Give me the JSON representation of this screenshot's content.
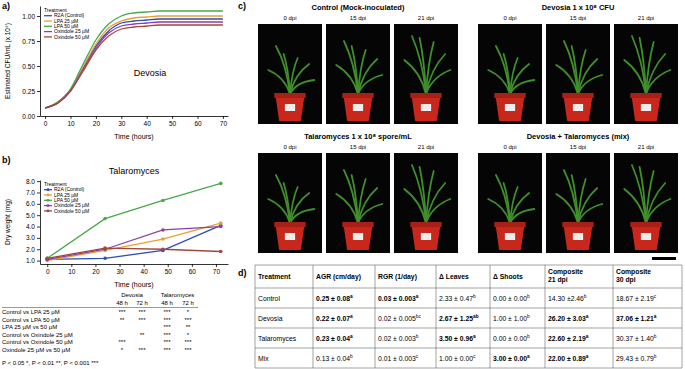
{
  "panel_labels": [
    "a)",
    "b)",
    "c)",
    "d)"
  ],
  "chart_data": [
    {
      "type": "line",
      "title": "Devosia",
      "xlabel": "Time (hours)",
      "ylabel": "Estimated CFU/mL (x 10⁹)",
      "legend_title": "Treatment",
      "legend": "upper left",
      "grid": false,
      "line_style": "smooth",
      "x": [
        0,
        5,
        10,
        15,
        20,
        25,
        30,
        35,
        40,
        45,
        50,
        55,
        60,
        65,
        70
      ],
      "series": [
        {
          "name": "R2A (Control)",
          "color": "#2f4bb8",
          "values": [
            0.08,
            0.13,
            0.26,
            0.48,
            0.7,
            0.85,
            0.93,
            0.95,
            0.96,
            0.97,
            0.97,
            0.97,
            0.97,
            0.97,
            0.97
          ]
        },
        {
          "name": "LPA 25 µM",
          "color": "#e8a030",
          "values": [
            0.08,
            0.14,
            0.26,
            0.49,
            0.72,
            0.88,
            0.95,
            0.98,
            0.99,
            1.0,
            1.0,
            1.0,
            1.0,
            1.0,
            1.0
          ]
        },
        {
          "name": "LPA 50 µM",
          "color": "#4aa84a",
          "values": [
            0.08,
            0.14,
            0.27,
            0.52,
            0.76,
            0.92,
            1.0,
            1.03,
            1.04,
            1.05,
            1.05,
            1.05,
            1.05,
            1.05,
            1.05
          ]
        },
        {
          "name": "Oxindole 25 µM",
          "color": "#8a3fa8",
          "values": [
            0.08,
            0.13,
            0.25,
            0.47,
            0.68,
            0.83,
            0.9,
            0.92,
            0.93,
            0.94,
            0.94,
            0.94,
            0.94,
            0.94,
            0.94
          ]
        },
        {
          "name": "Oxindole 50 µM",
          "color": "#a3473a",
          "values": [
            0.08,
            0.13,
            0.25,
            0.45,
            0.66,
            0.8,
            0.87,
            0.89,
            0.9,
            0.91,
            0.91,
            0.91,
            0.91,
            0.91,
            0.91
          ]
        }
      ],
      "xlim": [
        -2,
        72
      ],
      "xticks": [
        0,
        10,
        20,
        30,
        40,
        50,
        60,
        70
      ],
      "ylim": [
        0,
        1.1
      ],
      "yticks": [
        {
          "value": 0,
          "label": "0.00"
        },
        {
          "value": 0.25,
          "label": "0.25"
        },
        {
          "value": 0.5,
          "label": "0.50"
        },
        {
          "value": 0.75,
          "label": "0.75"
        },
        {
          "value": 1,
          "label": "1.00"
        }
      ]
    },
    {
      "type": "line",
      "title": "Talaromyces",
      "xlabel": "Time (hours)",
      "ylabel": "Dry weight (mg)",
      "legend_title": "Treatment",
      "legend": "upper left",
      "grid": false,
      "line_style": "solid",
      "marker": "circle",
      "x": [
        0,
        24,
        48,
        72
      ],
      "series": [
        {
          "name": "R2A (Control)",
          "color": "#2f4bb8",
          "values": [
            1.1,
            1.2,
            1.9,
            4.1
          ]
        },
        {
          "name": "LPA 25 µM",
          "color": "#e8a030",
          "values": [
            1.0,
            1.9,
            2.9,
            4.3
          ]
        },
        {
          "name": "LPA 50 µM",
          "color": "#4aa84a",
          "values": [
            1.2,
            4.7,
            6.3,
            7.8
          ]
        },
        {
          "name": "Oxindole 25 µM",
          "color": "#8a3fa8",
          "values": [
            1.1,
            2.0,
            3.7,
            4.0
          ]
        },
        {
          "name": "Oxindole 50 µM",
          "color": "#a3473a",
          "values": [
            1.2,
            2.1,
            2.0,
            1.8
          ]
        }
      ],
      "xlim": [
        -3,
        75
      ],
      "xticks": [
        0,
        10,
        20,
        30,
        40,
        50,
        60,
        70
      ],
      "ylim": [
        0.7,
        8.1
      ],
      "yticks": [
        {
          "value": 1,
          "label": "1.0"
        },
        {
          "value": 2,
          "label": "2.0"
        },
        {
          "value": 3,
          "label": "3.0"
        },
        {
          "value": 4,
          "label": "4.0"
        },
        {
          "value": 5,
          "label": "5.0"
        },
        {
          "value": 6,
          "label": "6.0"
        },
        {
          "value": 7,
          "label": "7.0"
        },
        {
          "value": 8,
          "label": "8.0"
        }
      ]
    }
  ],
  "significance_table": {
    "groups": [
      "Devosia",
      "Talaromyces"
    ],
    "columns": [
      "48 h",
      "72 h",
      "48 h",
      "72 h"
    ],
    "rows": [
      [
        "Control vs LPA 25 µM",
        "***",
        "***",
        "***",
        "*"
      ],
      [
        "Control vs LPA 50 µM",
        "**",
        "***",
        "***",
        "***"
      ],
      [
        "LPA 25 µM vs 50 µM",
        null,
        null,
        "***",
        "**"
      ],
      [
        "Control vs Oxindole 25 µM",
        null,
        "**",
        "***",
        "*"
      ],
      [
        "Control vs Oxindole 50 µM",
        "***",
        null,
        "***",
        "***"
      ],
      [
        "Oxindole 25 µM vs 50 µM",
        "*",
        "***",
        "***",
        "***"
      ]
    ],
    "footnote": "P < 0.05 *, P < 0.01 **, P < 0.001 ***"
  },
  "photos": {
    "panels": [
      {
        "title": "Control (Mock-inoculated)",
        "times": [
          "0 dpi",
          "15 dpi",
          "21 dpi"
        ]
      },
      {
        "title": "Devosia 1 x 10⁸ CFU",
        "times": [
          "0 dpi",
          "15 dpi",
          "21 dpi"
        ]
      },
      {
        "title": "Talaromyces 1 x 10⁸ spore/mL",
        "times": [
          "0 dpi",
          "15 dpi",
          "21 dpi"
        ]
      },
      {
        "title": "Devosia + Talaromyces (mix)",
        "times": [
          "0 dpi",
          "15 dpi",
          "21 dpi"
        ]
      }
    ]
  },
  "growth_table": {
    "header": [
      [
        "Treatment"
      ],
      [
        "AGR (cm/day)"
      ],
      [
        "RGR (1/day)"
      ],
      [
        "Δ Leaves"
      ],
      [
        "Δ Shoots"
      ],
      [
        "Composite",
        "21 dpi"
      ],
      [
        "Composite",
        "30 dpi"
      ]
    ],
    "rows": [
      {
        "treatment": "Control",
        "cells": [
          {
            "text": "0.25 ± 0.08",
            "sup": "a",
            "bold": true
          },
          {
            "text": "0.03 ± 0.003",
            "sup": "a",
            "bold": true
          },
          {
            "text": "2.33 ± 0.47",
            "sup": "b",
            "bold": false
          },
          {
            "text": "0.00 ± 0.00",
            "sup": "b",
            "bold": false
          },
          {
            "text": "14.30 ±2.46",
            "sup": "b",
            "bold": false
          },
          {
            "text": "18.67 ± 2.19",
            "sup": "c",
            "bold": false
          }
        ]
      },
      {
        "treatment": "Devosia",
        "cells": [
          {
            "text": "0.22 ± 0.07",
            "sup": "a",
            "bold": true
          },
          {
            "text": "0.02 ± 0.005",
            "sup": "bc",
            "bold": false
          },
          {
            "text": "2.67 ± 1.25",
            "sup": "ab",
            "bold": true
          },
          {
            "text": "1.00 ± 1.00",
            "sup": "b",
            "bold": false
          },
          {
            "text": "26.20 ± 3.03",
            "sup": "a",
            "bold": true
          },
          {
            "text": "37.06 ± 1.21",
            "sup": "a",
            "bold": true
          }
        ]
      },
      {
        "treatment": "Talaromyces",
        "cells": [
          {
            "text": "0.23 ± 0.04",
            "sup": "a",
            "bold": true
          },
          {
            "text": "0.02 ± 0.003",
            "sup": "b",
            "bold": false
          },
          {
            "text": "3.50 ± 0.96",
            "sup": "a",
            "bold": true
          },
          {
            "text": "0.00 ± 0.00",
            "sup": "b",
            "bold": false
          },
          {
            "text": "22.60 ± 2.19",
            "sup": "a",
            "bold": true
          },
          {
            "text": "30.37 ± 1.40",
            "sup": "b",
            "bold": false
          }
        ]
      },
      {
        "treatment": "Mix",
        "cells": [
          {
            "text": "0.13 ± 0.04",
            "sup": "b",
            "bold": false
          },
          {
            "text": "0.01 ± 0.003",
            "sup": "c",
            "bold": false
          },
          {
            "text": "1.00 ± 0.00",
            "sup": "c",
            "bold": false
          },
          {
            "text": "3.00 ± 0.00",
            "sup": "a",
            "bold": true
          },
          {
            "text": "22.00 ± 0.89",
            "sup": "a",
            "bold": true
          },
          {
            "text": "29.43 ± 0.79",
            "sup": "b",
            "bold": false
          }
        ]
      }
    ]
  }
}
